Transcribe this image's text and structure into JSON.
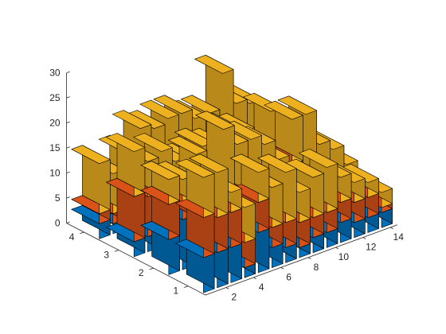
{
  "chart_data": {
    "type": "bar3-stacked",
    "title": "",
    "xlabel": "",
    "ylabel": "",
    "zlabel": "",
    "x": [
      1,
      2,
      3,
      4,
      5,
      6,
      7,
      8,
      9,
      10,
      11,
      12,
      13,
      14
    ],
    "rows": [
      1,
      2,
      3,
      4
    ],
    "series": [
      {
        "color": "#0072BD",
        "values": [
          [
            7,
            7,
            7,
            2,
            8,
            4,
            3,
            2,
            3,
            3,
            4,
            3,
            3,
            3
          ],
          [
            7,
            10,
            5,
            3,
            4,
            3,
            2,
            5,
            3,
            5,
            4,
            3,
            4,
            3
          ],
          [
            3,
            3,
            4,
            3,
            3,
            3,
            2,
            5,
            4,
            3,
            4,
            4,
            3,
            3
          ],
          [
            3,
            2,
            3,
            3,
            4,
            3,
            3,
            2,
            4,
            3,
            3,
            4,
            3,
            4
          ]
        ]
      },
      {
        "color": "#D95319",
        "values": [
          [
            8,
            7,
            7,
            5,
            6,
            4,
            5,
            5,
            4,
            4,
            4,
            4,
            4,
            1
          ],
          [
            7,
            3,
            6,
            7,
            7,
            8,
            7,
            6,
            4,
            8,
            6,
            4,
            3,
            3
          ],
          [
            9,
            8,
            6,
            4,
            4,
            6,
            4,
            4,
            6,
            4,
            5,
            4,
            4,
            2
          ],
          [
            2,
            2,
            3,
            4,
            5,
            5,
            4,
            6,
            6,
            7,
            4,
            5,
            4,
            3
          ]
        ]
      },
      {
        "color": "#EDB120",
        "values": [
          [
            8,
            9,
            4,
            7,
            6,
            8,
            10,
            6,
            8,
            9,
            5,
            4,
            3,
            3
          ],
          [
            5,
            5,
            11,
            8,
            14,
            10,
            12,
            8,
            8,
            9,
            12,
            8,
            6,
            3
          ],
          [
            9,
            7,
            9,
            9,
            8,
            8,
            10,
            9,
            7,
            7,
            10,
            6,
            5,
            3
          ],
          [
            10,
            8,
            9,
            12,
            9,
            11,
            12,
            9,
            7,
            14,
            10,
            7,
            6,
            3
          ]
        ]
      }
    ],
    "x_ticks": [
      2,
      4,
      6,
      8,
      10,
      12,
      14
    ],
    "y_ticks": [
      1,
      2,
      3,
      4
    ],
    "z_ticks": [
      0,
      5,
      10,
      15,
      20,
      25,
      30
    ],
    "zlim": [
      0,
      30
    ],
    "grid": false,
    "legend": "none"
  }
}
